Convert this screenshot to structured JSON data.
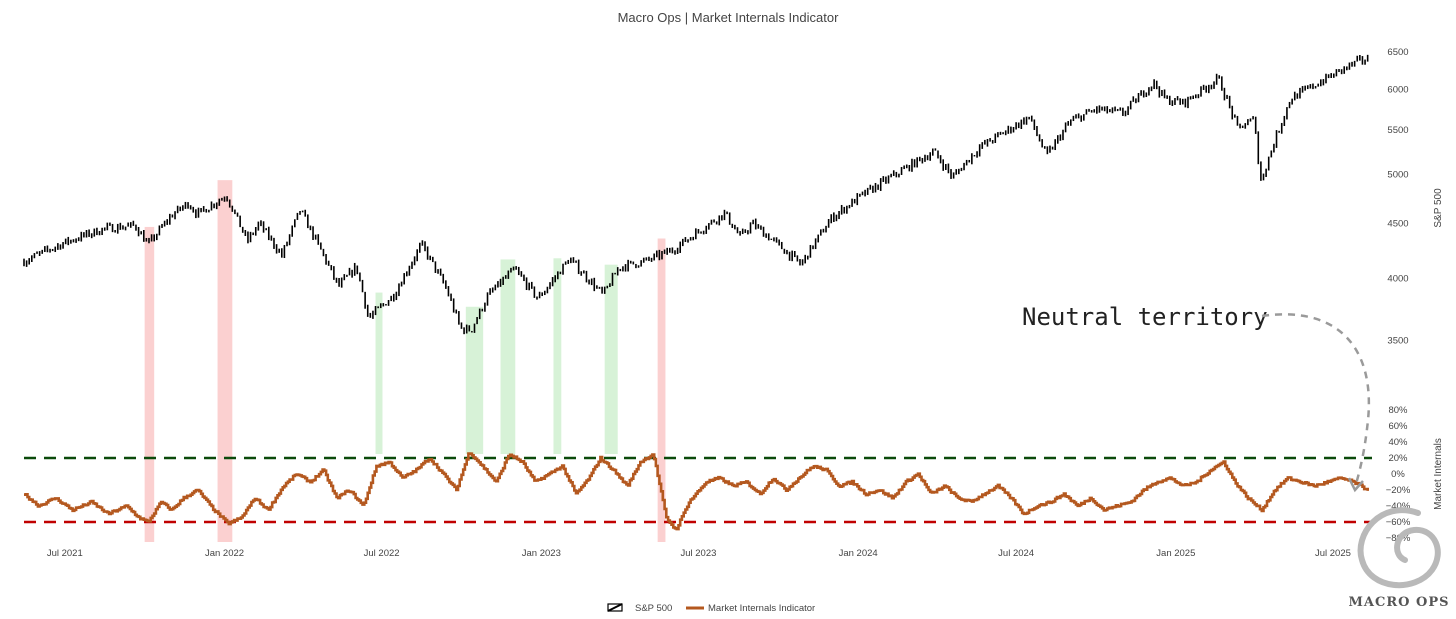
{
  "chart_data": {
    "title": "Macro Ops | Market Internals Indicator",
    "x_range": [
      "2021-05-15",
      "2025-08-15"
    ],
    "x_ticks": [
      {
        "date": "2021-07-01",
        "label": "Jul 2021"
      },
      {
        "date": "2022-01-01",
        "label": "Jan 2022"
      },
      {
        "date": "2022-07-01",
        "label": "Jul 2022"
      },
      {
        "date": "2023-01-01",
        "label": "Jan 2023"
      },
      {
        "date": "2023-07-01",
        "label": "Jul 2023"
      },
      {
        "date": "2024-01-01",
        "label": "Jan 2024"
      },
      {
        "date": "2024-07-01",
        "label": "Jul 2024"
      },
      {
        "date": "2025-01-01",
        "label": "Jan 2025"
      },
      {
        "date": "2025-07-01",
        "label": "Jul 2025"
      }
    ],
    "panels": [
      {
        "name": "price",
        "type": "ohlc",
        "ylabel": "S&P 500",
        "yscale": "log",
        "ylim": [
          3300,
          6600
        ],
        "y_ticks": [
          {
            "value": 3500,
            "label": "3500"
          },
          {
            "value": 4000,
            "label": "4000"
          },
          {
            "value": 4500,
            "label": "4500"
          },
          {
            "value": 5000,
            "label": "5000"
          },
          {
            "value": 5500,
            "label": "5500"
          },
          {
            "value": 6000,
            "label": "6000"
          },
          {
            "value": 6500,
            "label": "6500"
          }
        ],
        "series": {
          "name": "S&P 500",
          "color": "#000000",
          "x": [
            "2021-05-15",
            "2021-07-01",
            "2021-08-15",
            "2021-09-20",
            "2021-10-05",
            "2021-11-01",
            "2021-11-20",
            "2021-12-01",
            "2022-01-03",
            "2022-01-27",
            "2022-02-10",
            "2022-03-08",
            "2022-03-29",
            "2022-05-12",
            "2022-06-02",
            "2022-06-16",
            "2022-07-15",
            "2022-08-16",
            "2022-09-13",
            "2022-09-30",
            "2022-10-12",
            "2022-11-01",
            "2022-12-01",
            "2022-12-28",
            "2023-01-15",
            "2023-02-02",
            "2023-03-13",
            "2023-04-01",
            "2023-05-01",
            "2023-06-01",
            "2023-07-31",
            "2023-08-18",
            "2023-09-01",
            "2023-10-27",
            "2023-12-01",
            "2024-01-02",
            "2024-03-28",
            "2024-04-19",
            "2024-05-20",
            "2024-07-16",
            "2024-08-05",
            "2024-09-01",
            "2024-10-01",
            "2024-11-01",
            "2024-12-06",
            "2024-12-20",
            "2025-01-10",
            "2025-02-19",
            "2025-03-13",
            "2025-04-02",
            "2025-04-08",
            "2025-05-13",
            "2025-06-01",
            "2025-07-15",
            "2025-08-01",
            "2025-08-10"
          ],
          "values": [
            4150,
            4320,
            4450,
            4480,
            4300,
            4580,
            4700,
            4590,
            4780,
            4330,
            4500,
            4200,
            4630,
            3930,
            4100,
            3670,
            3860,
            4300,
            3920,
            3590,
            3580,
            3860,
            4080,
            3830,
            3990,
            4170,
            3860,
            4100,
            4150,
            4250,
            4600,
            4370,
            4500,
            4120,
            4550,
            4760,
            5250,
            4970,
            5300,
            5650,
            5200,
            5600,
            5750,
            5700,
            6090,
            5870,
            5830,
            6140,
            5520,
            5630,
            4900,
            5880,
            6000,
            6280,
            6380,
            6400
          ]
        },
        "shaded_periods": [
          {
            "start": "2021-10-01",
            "end": "2021-10-12",
            "color": "red"
          },
          {
            "start": "2021-12-24",
            "end": "2022-01-10",
            "color": "red"
          },
          {
            "start": "2022-06-24",
            "end": "2022-07-02",
            "color": "green"
          },
          {
            "start": "2022-10-06",
            "end": "2022-10-26",
            "color": "green"
          },
          {
            "start": "2022-11-15",
            "end": "2022-12-02",
            "color": "green"
          },
          {
            "start": "2023-01-15",
            "end": "2023-01-24",
            "color": "green"
          },
          {
            "start": "2023-03-15",
            "end": "2023-03-30",
            "color": "green"
          },
          {
            "start": "2023-05-15",
            "end": "2023-05-24",
            "color": "red"
          }
        ]
      },
      {
        "name": "internals",
        "type": "line",
        "ylabel": "Market Internals",
        "ylim": [
          -90,
          90
        ],
        "y_ticks": [
          {
            "value": 80,
            "label": "80%"
          },
          {
            "value": 60,
            "label": "60%"
          },
          {
            "value": 40,
            "label": "40%"
          },
          {
            "value": 20,
            "label": "20%"
          },
          {
            "value": 0,
            "label": "0%"
          },
          {
            "value": -20,
            "label": "−20%"
          },
          {
            "value": -40,
            "label": "−40%"
          },
          {
            "value": -60,
            "label": "−60%"
          },
          {
            "value": -80,
            "label": "−80%"
          }
        ],
        "series": {
          "name": "Market Internals Indicator",
          "color": "#b4581f",
          "x": [
            "2021-05-15",
            "2021-06-01",
            "2021-06-20",
            "2021-07-10",
            "2021-08-01",
            "2021-08-20",
            "2021-09-10",
            "2021-09-25",
            "2021-10-05",
            "2021-10-20",
            "2021-11-01",
            "2021-11-15",
            "2021-12-01",
            "2021-12-20",
            "2022-01-05",
            "2022-01-20",
            "2022-02-05",
            "2022-02-20",
            "2022-03-10",
            "2022-03-25",
            "2022-04-10",
            "2022-04-25",
            "2022-05-10",
            "2022-05-25",
            "2022-06-10",
            "2022-06-25",
            "2022-07-10",
            "2022-07-25",
            "2022-08-10",
            "2022-08-25",
            "2022-09-10",
            "2022-09-25",
            "2022-10-10",
            "2022-10-25",
            "2022-11-10",
            "2022-11-25",
            "2022-12-10",
            "2022-12-25",
            "2023-01-10",
            "2023-01-25",
            "2023-02-10",
            "2023-02-25",
            "2023-03-10",
            "2023-03-25",
            "2023-04-10",
            "2023-04-25",
            "2023-05-10",
            "2023-05-25",
            "2023-06-05",
            "2023-06-20",
            "2023-07-10",
            "2023-07-25",
            "2023-08-10",
            "2023-08-25",
            "2023-09-10",
            "2023-09-25",
            "2023-10-10",
            "2023-10-25",
            "2023-11-10",
            "2023-11-25",
            "2023-12-10",
            "2023-12-25",
            "2024-01-10",
            "2024-01-25",
            "2024-02-10",
            "2024-02-25",
            "2024-03-10",
            "2024-03-25",
            "2024-04-10",
            "2024-04-25",
            "2024-05-10",
            "2024-05-25",
            "2024-06-10",
            "2024-06-25",
            "2024-07-10",
            "2024-07-25",
            "2024-08-10",
            "2024-08-25",
            "2024-09-10",
            "2024-09-25",
            "2024-10-10",
            "2024-10-25",
            "2024-11-10",
            "2024-11-25",
            "2024-12-10",
            "2024-12-25",
            "2025-01-10",
            "2025-01-25",
            "2025-02-10",
            "2025-02-25",
            "2025-03-10",
            "2025-03-25",
            "2025-04-10",
            "2025-04-25",
            "2025-05-10",
            "2025-05-25",
            "2025-06-10",
            "2025-06-25",
            "2025-07-10",
            "2025-07-25",
            "2025-08-10"
          ],
          "values": [
            -25,
            -40,
            -30,
            -45,
            -35,
            -50,
            -40,
            -55,
            -60,
            -35,
            -45,
            -30,
            -20,
            -45,
            -62,
            -55,
            -30,
            -45,
            -15,
            0,
            -10,
            5,
            -30,
            -20,
            -40,
            10,
            15,
            -5,
            5,
            20,
            0,
            -20,
            28,
            10,
            -10,
            25,
            15,
            -10,
            0,
            10,
            -25,
            -5,
            20,
            5,
            -15,
            15,
            25,
            -55,
            -70,
            -35,
            -10,
            -5,
            -15,
            -10,
            -25,
            -5,
            -20,
            -5,
            10,
            5,
            -15,
            -10,
            -25,
            -20,
            -30,
            -10,
            0,
            -25,
            -15,
            -30,
            -35,
            -25,
            -15,
            -30,
            -50,
            -40,
            -35,
            -25,
            -40,
            -30,
            -45,
            -40,
            -35,
            -20,
            -10,
            -5,
            -15,
            -10,
            5,
            15,
            -10,
            -30,
            -45,
            -20,
            -5,
            -10,
            -15,
            -10,
            -5,
            -10,
            -20
          ]
        },
        "reference_lines": [
          {
            "value": 20,
            "color": "#0b4a0b",
            "style": "dashed"
          },
          {
            "value": -60,
            "color": "#c00000",
            "style": "dashed"
          }
        ]
      }
    ],
    "annotation": {
      "text": "Neutral territory",
      "arrow_to": "2025-08-10"
    },
    "legend": [
      "S&P 500",
      "Market Internals Indicator"
    ],
    "legend_position": "bottom-center",
    "grid": false
  },
  "logo": {
    "text": "MACRO OPS"
  },
  "colors": {
    "red_shade": "#fbd0d0",
    "green_shade": "#d7f2d7",
    "price": "#000000",
    "internals": "#b4581f"
  }
}
